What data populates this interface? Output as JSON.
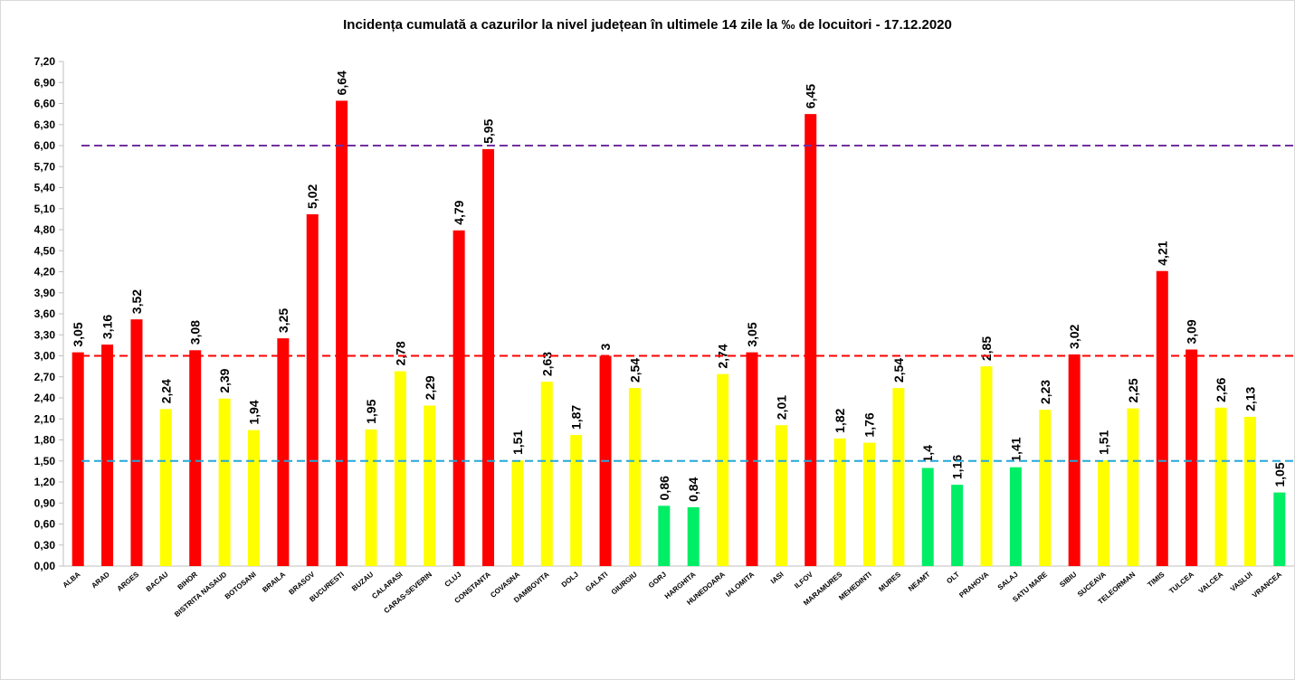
{
  "chart_data": {
    "type": "bar",
    "title": "Incidența cumulată a cazurilor la nivel județean în ultimele 14 zile la ‰ de locuitori - 17.12.2020",
    "ylim": [
      0,
      7.2
    ],
    "yticks": [
      "0,00",
      "0,30",
      "0,60",
      "0,90",
      "1,20",
      "1,50",
      "1,80",
      "2,10",
      "2,40",
      "2,70",
      "3,00",
      "3,30",
      "3,60",
      "3,90",
      "4,20",
      "4,50",
      "4,80",
      "5,10",
      "5,40",
      "5,70",
      "6,00",
      "6,30",
      "6,60",
      "6,90",
      "7,20"
    ],
    "categories": [
      "ALBA",
      "ARAD",
      "ARGES",
      "BACAU",
      "BIHOR",
      "BISTRITA NASAUD",
      "BOTOSANI",
      "BRAILA",
      "BRASOV",
      "BUCURESTI",
      "BUZAU",
      "CALARASI",
      "CARAS-SEVERIN",
      "CLUJ",
      "CONSTANTA",
      "COVASNA",
      "DAMBOVITA",
      "DOLJ",
      "GALATI",
      "GIURGIU",
      "GORJ",
      "HARGHITA",
      "HUNEDOARA",
      "IALOMITA",
      "IASI",
      "ILFOV",
      "MARAMURES",
      "MEHEDINTI",
      "MURES",
      "NEAMT",
      "OLT",
      "PRAHOVA",
      "SALAJ",
      "SATU MARE",
      "SIBIU",
      "SUCEAVA",
      "TELEORMAN",
      "TIMIS",
      "TULCEA",
      "VALCEA",
      "VASLUI",
      "VRANCEA"
    ],
    "values": [
      3.05,
      3.16,
      3.52,
      2.24,
      3.08,
      2.39,
      1.94,
      3.25,
      5.02,
      6.64,
      1.95,
      2.78,
      2.29,
      4.79,
      5.95,
      1.51,
      2.63,
      1.87,
      3.0,
      2.54,
      0.86,
      0.84,
      2.74,
      3.05,
      2.01,
      6.45,
      1.82,
      1.76,
      2.54,
      1.4,
      1.16,
      2.85,
      1.41,
      2.23,
      3.02,
      1.51,
      2.25,
      4.21,
      3.09,
      2.26,
      2.13,
      1.05
    ],
    "data_labels": [
      "3,05",
      "3,16",
      "3,52",
      "2,24",
      "3,08",
      "2,39",
      "1,94",
      "3,25",
      "5,02",
      "6,64",
      "1,95",
      "2,78",
      "2,29",
      "4,79",
      "5,95",
      "1,51",
      "2,63",
      "1,87",
      "3",
      "2,54",
      "0,86",
      "0,84",
      "2,74",
      "3,05",
      "2,01",
      "6,45",
      "1,82",
      "1,76",
      "2,54",
      "1,4",
      "1,16",
      "2,85",
      "1,41",
      "2,23",
      "3,02",
      "1,51",
      "2,25",
      "4,21",
      "3,09",
      "2,26",
      "2,13",
      "1,05"
    ],
    "bar_colors": [
      "red",
      "red",
      "red",
      "yellow",
      "red",
      "yellow",
      "yellow",
      "red",
      "red",
      "red",
      "yellow",
      "yellow",
      "yellow",
      "red",
      "red",
      "yellow",
      "yellow",
      "yellow",
      "red",
      "yellow",
      "green",
      "green",
      "yellow",
      "red",
      "yellow",
      "red",
      "yellow",
      "yellow",
      "yellow",
      "green",
      "green",
      "yellow",
      "green",
      "yellow",
      "red",
      "yellow",
      "yellow",
      "red",
      "red",
      "yellow",
      "yellow",
      "green"
    ],
    "colors": {
      "red": "#ff0000",
      "yellow": "#ffff00",
      "green": "#00ee66"
    },
    "thresholds": [
      {
        "value": 6.0,
        "color": "#7030a0"
      },
      {
        "value": 3.0,
        "color": "#ff0000"
      },
      {
        "value": 1.5,
        "color": "#23a8d8"
      }
    ],
    "grid": false,
    "legend": "none"
  }
}
